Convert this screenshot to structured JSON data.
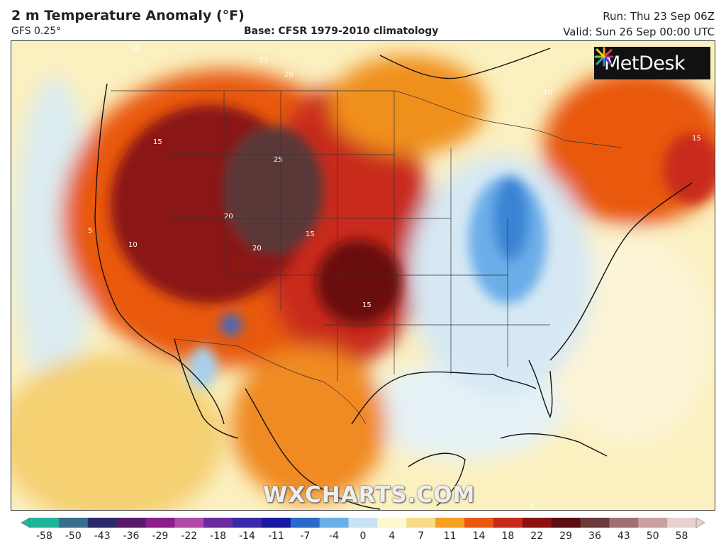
{
  "header": {
    "title": "2 m Temperature Anomaly (°F)",
    "model": "GFS 0.25°",
    "base": "Base: CFSR 1979-2010 climatology",
    "run": "Run: Thu 23 Sep 06Z",
    "valid": "Valid: Sun 26 Sep 00:00 UTC"
  },
  "logo": {
    "text": "MetDesk"
  },
  "watermark": "WXCHARTS.COM",
  "colorbar": {
    "ticks": [
      "-58",
      "-50",
      "-43",
      "-36",
      "-29",
      "-22",
      "-18",
      "-14",
      "-11",
      "-7",
      "-4",
      "0",
      "4",
      "7",
      "11",
      "14",
      "18",
      "22",
      "29",
      "36",
      "43",
      "50",
      "58"
    ],
    "colors": [
      "#1fb59b",
      "#3a6e8f",
      "#2a2a6a",
      "#5a1a6a",
      "#8a1e8a",
      "#b04aa8",
      "#6a2aa0",
      "#3a2aa8",
      "#1a1aa0",
      "#2a6ac8",
      "#6aaee8",
      "#c8e4f4",
      "#fdf7d2",
      "#f6dc86",
      "#f5a020",
      "#e8580e",
      "#c82a1a",
      "#8a1212",
      "#5a0e10",
      "#6a3a3a",
      "#a07070",
      "#c8a0a0",
      "#e8d0d0"
    ]
  },
  "map_labels": [
    "10",
    "15",
    "20",
    "25",
    "15",
    "10",
    "5",
    "-5",
    "15",
    "10",
    "15",
    "20",
    "20",
    "15"
  ]
}
